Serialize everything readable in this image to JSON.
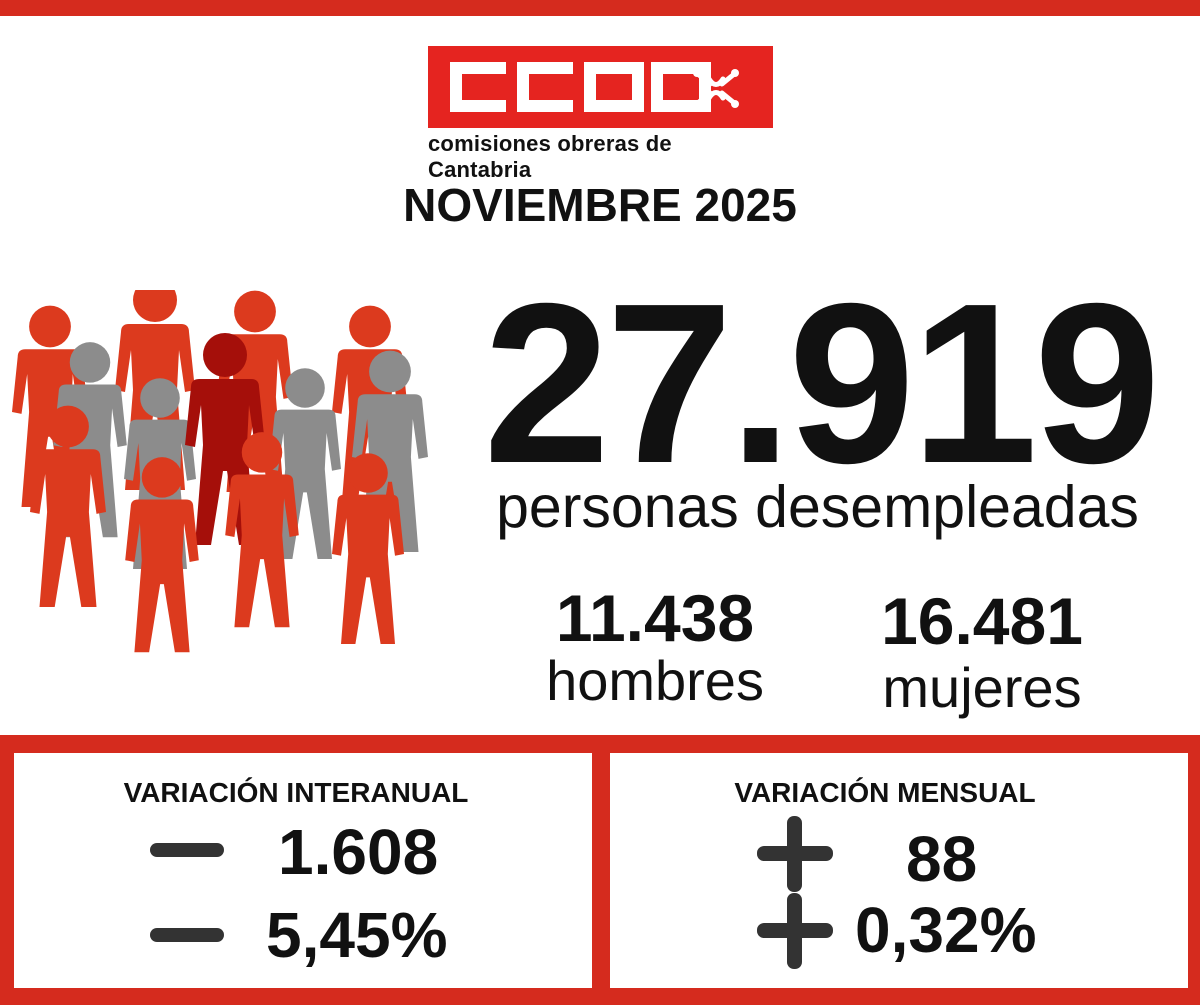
{
  "logo": {
    "text": "CCOO",
    "caption": "comisiones obreras de Cantabria"
  },
  "month": "NOVIEMBRE 2025",
  "unemployed": {
    "total": "27.919",
    "caption": "personas desempleadas",
    "men": {
      "value": "11.438",
      "label": "hombres"
    },
    "women": {
      "value": "16.481",
      "label": "mujeres"
    }
  },
  "variation_yearly": {
    "title": "VARIACIÓN INTERANUAL",
    "people": "1.608",
    "percent": "5,45%",
    "sign": "minus"
  },
  "variation_monthly": {
    "title": "VARIACIÓN MENSUAL",
    "people": "88",
    "percent": "0,32%",
    "sign": "plus"
  },
  "colors": {
    "brand_red": "#d52b1e",
    "logo_red": "#e52420",
    "person_red": "#dc3a1e",
    "person_dark_red": "#a50f0a",
    "person_gray": "#8c8c8c",
    "sign_gray": "#333333"
  }
}
